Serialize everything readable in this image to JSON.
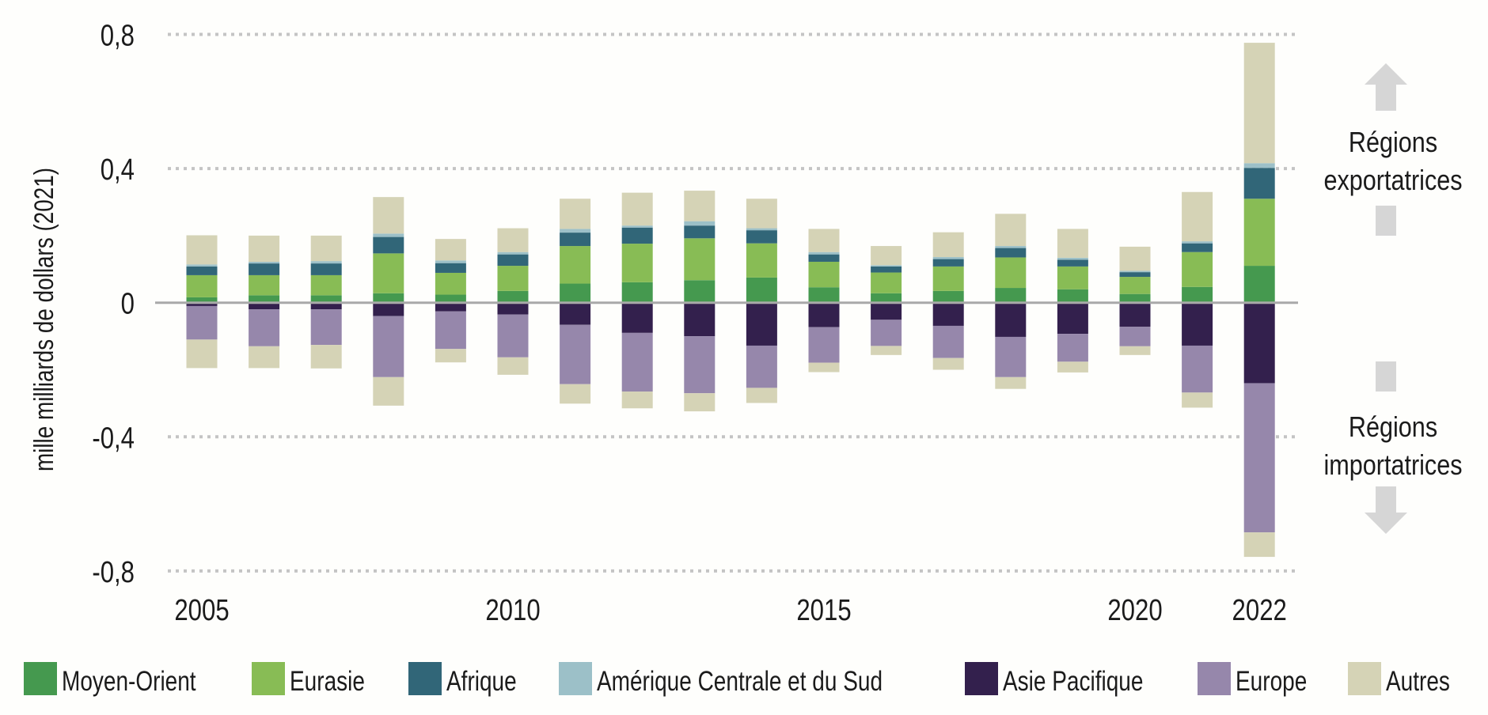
{
  "chart_data": {
    "type": "bar",
    "stacked": true,
    "title": "",
    "xlabel": "",
    "ylabel": "mille milliards de dollars (2021)",
    "ylim": [
      -0.8,
      0.8
    ],
    "yticks": [
      0.8,
      0.4,
      0,
      -0.4,
      -0.8
    ],
    "ytick_labels": [
      "0,8",
      "0,4",
      "0",
      "-0,4",
      "-0,8"
    ],
    "grid": true,
    "categories": [
      "2005",
      "2006",
      "2007",
      "2008",
      "2009",
      "2010",
      "2011",
      "2012",
      "2013",
      "2014",
      "2015",
      "2016",
      "2017",
      "2018",
      "2019",
      "2020",
      "2021",
      "2022"
    ],
    "xtick_labels": [
      {
        "category": "2005",
        "label": "2005"
      },
      {
        "category": "2010",
        "label": "2010"
      },
      {
        "category": "2015",
        "label": "2015"
      },
      {
        "category": "2020",
        "label": "2020"
      },
      {
        "category": "2022",
        "label": "2022"
      }
    ],
    "series": [
      {
        "name": "Moyen-Orient",
        "color": "#45994f",
        "group": "exports",
        "values": [
          0.016,
          0.022,
          0.022,
          0.028,
          0.024,
          0.035,
          0.057,
          0.061,
          0.067,
          0.075,
          0.046,
          0.028,
          0.035,
          0.044,
          0.04,
          0.026,
          0.047,
          0.11
        ]
      },
      {
        "name": "Eurasie",
        "color": "#88bc55",
        "group": "exports",
        "values": [
          0.066,
          0.06,
          0.06,
          0.119,
          0.065,
          0.075,
          0.112,
          0.115,
          0.125,
          0.102,
          0.076,
          0.062,
          0.073,
          0.091,
          0.068,
          0.051,
          0.104,
          0.2
        ]
      },
      {
        "name": "Afrique",
        "color": "#316678",
        "group": "exports",
        "values": [
          0.026,
          0.035,
          0.035,
          0.049,
          0.029,
          0.034,
          0.04,
          0.048,
          0.038,
          0.039,
          0.022,
          0.018,
          0.022,
          0.028,
          0.02,
          0.014,
          0.026,
          0.092
        ]
      },
      {
        "name": "Amérique Centrale et du Sud",
        "color": "#9cc0c8",
        "group": "exports",
        "values": [
          0.006,
          0.005,
          0.007,
          0.01,
          0.008,
          0.007,
          0.011,
          0.006,
          0.013,
          0.006,
          0.007,
          0.004,
          0.006,
          0.006,
          0.006,
          0.004,
          0.006,
          0.014
        ]
      },
      {
        "name": "Asie Pacifique",
        "color": "#33204d",
        "group": "imports",
        "values": [
          -0.01,
          -0.02,
          -0.02,
          -0.04,
          -0.026,
          -0.035,
          -0.066,
          -0.09,
          -0.1,
          -0.128,
          -0.073,
          -0.051,
          -0.069,
          -0.102,
          -0.093,
          -0.072,
          -0.128,
          -0.24
        ]
      },
      {
        "name": "Europe",
        "color": "#9687ab",
        "group": "imports",
        "values": [
          -0.1,
          -0.11,
          -0.106,
          -0.182,
          -0.112,
          -0.128,
          -0.177,
          -0.175,
          -0.17,
          -0.126,
          -0.106,
          -0.078,
          -0.096,
          -0.12,
          -0.083,
          -0.058,
          -0.14,
          -0.445
        ]
      },
      {
        "name": "Autres",
        "color": "#d5d3b6",
        "group": "both",
        "values_positive": [
          0.087,
          0.078,
          0.076,
          0.109,
          0.064,
          0.071,
          0.09,
          0.098,
          0.091,
          0.088,
          0.069,
          0.057,
          0.074,
          0.096,
          0.086,
          0.072,
          0.147,
          0.359
        ],
        "values_negative": [
          -0.085,
          -0.065,
          -0.07,
          -0.085,
          -0.04,
          -0.052,
          -0.058,
          -0.05,
          -0.054,
          -0.045,
          -0.028,
          -0.027,
          -0.035,
          -0.035,
          -0.032,
          -0.026,
          -0.045,
          -0.073
        ]
      }
    ],
    "legend": {
      "placement": "bottom",
      "entries": [
        "Moyen-Orient",
        "Eurasie",
        "Afrique",
        "Amérique Centrale et du Sud",
        "Asie Pacifique",
        "Europe",
        "Autres"
      ]
    },
    "annotations": [
      {
        "text_lines": [
          "Régions",
          "exportatrices"
        ],
        "arrow": "up",
        "side": "right",
        "region": "upper"
      },
      {
        "text_lines": [
          "Régions",
          "importatrices"
        ],
        "arrow": "down",
        "side": "right",
        "region": "lower"
      }
    ]
  }
}
